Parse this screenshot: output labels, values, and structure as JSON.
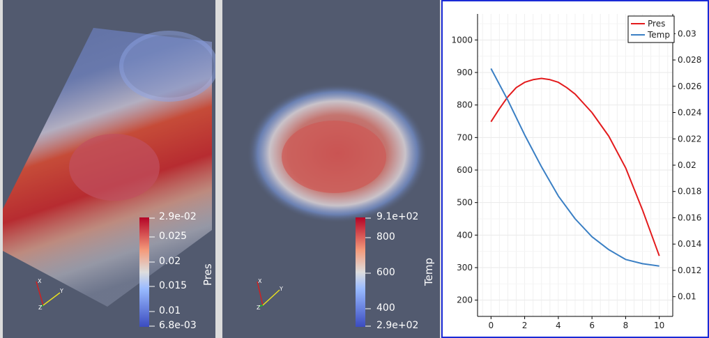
{
  "views": [
    {
      "field": "Pres",
      "colorbar": {
        "title": "Pres",
        "labels": [
          "2.9e-02",
          "0.025",
          "0.02",
          "0.015",
          "0.01",
          "6.8e-03"
        ],
        "range": [
          0.0068,
          0.029
        ]
      }
    },
    {
      "field": "Temp",
      "colorbar": {
        "title": "Temp",
        "labels": [
          "9.1e+02",
          "800",
          "600",
          "400",
          "2.9e+02"
        ],
        "range": [
          290,
          910
        ]
      }
    }
  ],
  "axes_triad_labels": [
    "X",
    "Y",
    "Z"
  ],
  "colors": {
    "background": "#525a6f",
    "pres_line": "#e31a1c",
    "temp_line": "#3a7fc4",
    "active_view_border": "#1a2ad6"
  },
  "chart_data": {
    "type": "line",
    "x_ticks": [
      "0",
      "2",
      "4",
      "6",
      "8",
      "10"
    ],
    "xlim": [
      -0.8,
      10.8
    ],
    "left_axis_ticks": [
      "200",
      "300",
      "400",
      "500",
      "600",
      "700",
      "800",
      "900",
      "1000"
    ],
    "left_ylim": [
      150,
      1080
    ],
    "right_axis_ticks": [
      "0.01",
      "0.012",
      "0.014",
      "0.016",
      "0.018",
      "0.02",
      "0.022",
      "0.024",
      "0.026",
      "0.028",
      "0.03"
    ],
    "right_ylim": [
      0.0085,
      0.0315
    ],
    "grid": true,
    "legend_position": "top-right",
    "series": [
      {
        "name": "Pres",
        "axis": "right",
        "color": "#e31a1c",
        "x": [
          0,
          0.5,
          1,
          1.5,
          2,
          2.5,
          3,
          3.5,
          4,
          4.5,
          5,
          6,
          7,
          8,
          9,
          10
        ],
        "y": [
          0.0233,
          0.0243,
          0.0252,
          0.0259,
          0.0263,
          0.0265,
          0.0266,
          0.0265,
          0.0263,
          0.0259,
          0.0254,
          0.024,
          0.0222,
          0.0198,
          0.0166,
          0.0131
        ]
      },
      {
        "name": "Temp",
        "axis": "left",
        "color": "#3a7fc4",
        "x": [
          0,
          1,
          2,
          3,
          4,
          5,
          6,
          7,
          8,
          9,
          10
        ],
        "y": [
          912,
          815,
          708,
          610,
          520,
          450,
          395,
          355,
          325,
          312,
          305
        ]
      }
    ]
  }
}
